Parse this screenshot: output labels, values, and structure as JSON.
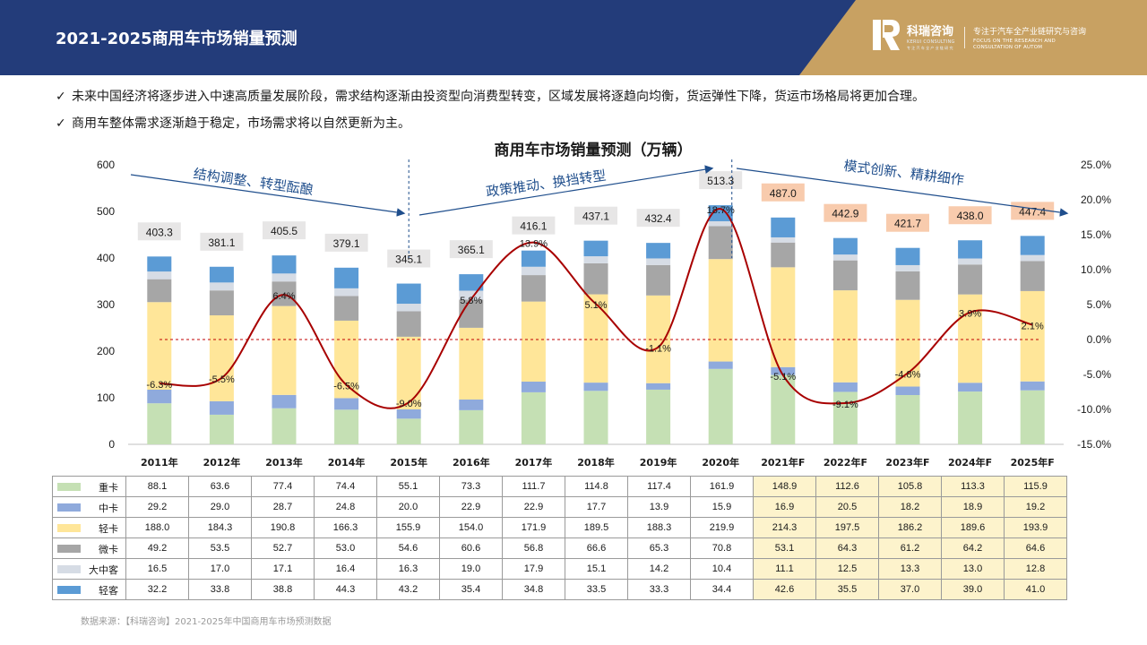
{
  "header": {
    "title": "2021-2025商用车市场销量预测",
    "brand_name": "科瑞咨询",
    "brand_en": "KERUI CONSULTING",
    "brand_cn_small": "专 注 汽 车 全 产 业 链 研 究",
    "tagline": "专注于汽车全产业链研究与咨询",
    "tagline_en_1": "FOCUS ON THE RESEARCH AND",
    "tagline_en_2": "CONSULTATION OF AUTOM",
    "colors": {
      "navy": "#233c7a",
      "gold": "#c8a162"
    }
  },
  "bullets": [
    "未来中国经济将逐步进入中速高质量发展阶段，需求结构逐渐由投资型向消费型转变，区域发展将逐趋向均衡，货运弹性下降，货运市场格局将更加合理。",
    "商用车整体需求逐渐趋于稳定，市场需求将以自然更新为主。"
  ],
  "check_icon": "✓",
  "source": "数据来源：【科瑞咨询】2021-2025年中国商用车市场预测数据",
  "chart_data": {
    "type": "bar",
    "stacked": true,
    "title": "商用车市场销量预测（万辆）",
    "categories": [
      "2011年",
      "2012年",
      "2013年",
      "2014年",
      "2015年",
      "2016年",
      "2017年",
      "2018年",
      "2019年",
      "2020年",
      "2021年F",
      "2022年F",
      "2023年F",
      "2024年F",
      "2025年F"
    ],
    "forecast_start_index": 10,
    "series": [
      {
        "name": "重卡",
        "color": "#c5e0b4",
        "values": [
          88.1,
          63.6,
          77.4,
          74.4,
          55.1,
          73.3,
          111.7,
          114.8,
          117.4,
          161.9,
          148.9,
          112.6,
          105.8,
          113.3,
          115.9
        ]
      },
      {
        "name": "中卡",
        "color": "#8faadc",
        "values": [
          29.2,
          29.0,
          28.7,
          24.8,
          20.0,
          22.9,
          22.9,
          17.7,
          13.9,
          15.9,
          16.9,
          20.5,
          18.2,
          18.9,
          19.2
        ]
      },
      {
        "name": "轻卡",
        "color": "#ffe699",
        "values": [
          188.0,
          184.3,
          190.8,
          166.3,
          155.9,
          154.0,
          171.9,
          189.5,
          188.3,
          219.9,
          214.3,
          197.5,
          186.2,
          189.6,
          193.9
        ]
      },
      {
        "name": "微卡",
        "color": "#a6a6a6",
        "values": [
          49.2,
          53.5,
          52.7,
          53.0,
          54.6,
          60.6,
          56.8,
          66.6,
          65.3,
          70.8,
          53.1,
          64.3,
          61.2,
          64.2,
          64.6
        ]
      },
      {
        "name": "大中客",
        "color": "#d6dce5",
        "values": [
          16.5,
          17.0,
          17.1,
          16.4,
          16.3,
          19.0,
          17.9,
          15.1,
          14.2,
          10.4,
          11.1,
          12.5,
          13.3,
          13.0,
          12.8
        ]
      },
      {
        "name": "轻客",
        "color": "#5b9bd5",
        "values": [
          32.2,
          33.8,
          38.8,
          44.3,
          43.2,
          35.4,
          34.8,
          33.5,
          33.3,
          34.4,
          42.6,
          35.5,
          37.0,
          39.0,
          41.0
        ]
      }
    ],
    "totals": [
      "403.3",
      "381.1",
      "405.5",
      "379.1",
      "345.1",
      "365.1",
      "416.1",
      "437.1",
      "432.4",
      "513.3",
      "487.0",
      "442.9",
      "421.7",
      "438.0",
      "447.4"
    ],
    "growth": {
      "values": [
        -6.3,
        -5.5,
        6.4,
        -6.5,
        -9.0,
        5.8,
        13.9,
        5.1,
        -1.1,
        18.7,
        -5.1,
        -9.1,
        -4.8,
        3.9,
        2.1
      ],
      "labels": [
        "-6.3%",
        "-5.5%",
        "6.4%",
        "-6.5%",
        "-9.0%",
        "5.8%",
        "13.9%",
        "5.1%",
        "-1.1%",
        "18.7%",
        "-5.1%",
        "-9.1%",
        "-4.8%",
        "3.9%",
        "2.1%"
      ],
      "color": "#a80000"
    },
    "y_left": {
      "min": 0,
      "max": 600,
      "ticks": [
        "0",
        "100",
        "200",
        "300",
        "400",
        "500",
        "600"
      ]
    },
    "y_right": {
      "min": -15,
      "max": 25,
      "ticks": [
        "-15.0%",
        "-10.0%",
        "-5.0%",
        "0.0%",
        "5.0%",
        "10.0%",
        "15.0%",
        "20.0%",
        "25.0%"
      ]
    },
    "annotations": [
      "结构调整、转型酝酿",
      "政策推动、换挡转型",
      "模式创新、精耕细作"
    ],
    "total_label_colors": {
      "actual": "#e7e6e6",
      "forecast": "#f8cbad"
    }
  }
}
